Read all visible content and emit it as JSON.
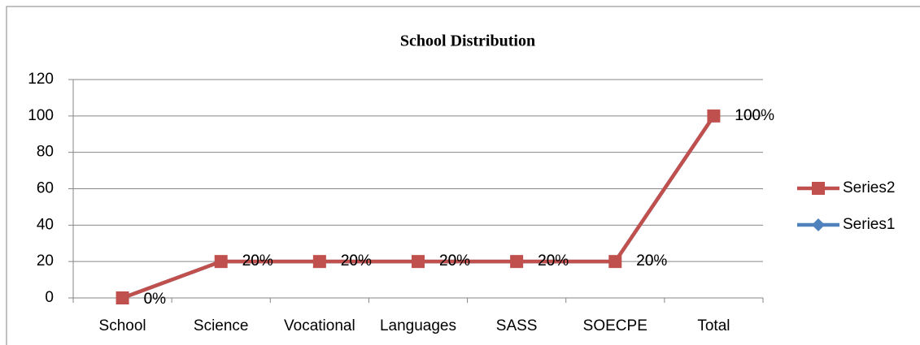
{
  "chart_data": {
    "type": "line",
    "title": "School Distribution",
    "categories": [
      "School",
      "Science",
      "Vocational",
      "Languages",
      "SASS",
      "SOECPE",
      "Total"
    ],
    "series": [
      {
        "name": "Series1",
        "color": "#4f81bd",
        "marker": "diamond",
        "values": [
          0,
          20,
          20,
          20,
          20,
          20,
          100
        ]
      },
      {
        "name": "Series2",
        "color": "#c0504d",
        "marker": "square",
        "values": [
          0,
          20,
          20,
          20,
          20,
          20,
          100
        ],
        "value_labels": [
          "0%",
          "20%",
          "20%",
          "20%",
          "20%",
          "20%",
          "100%"
        ]
      }
    ],
    "ylim": [
      0,
      120
    ],
    "yticks": [
      0,
      20,
      40,
      60,
      80,
      100,
      120
    ],
    "grid": true,
    "legend": "right"
  }
}
